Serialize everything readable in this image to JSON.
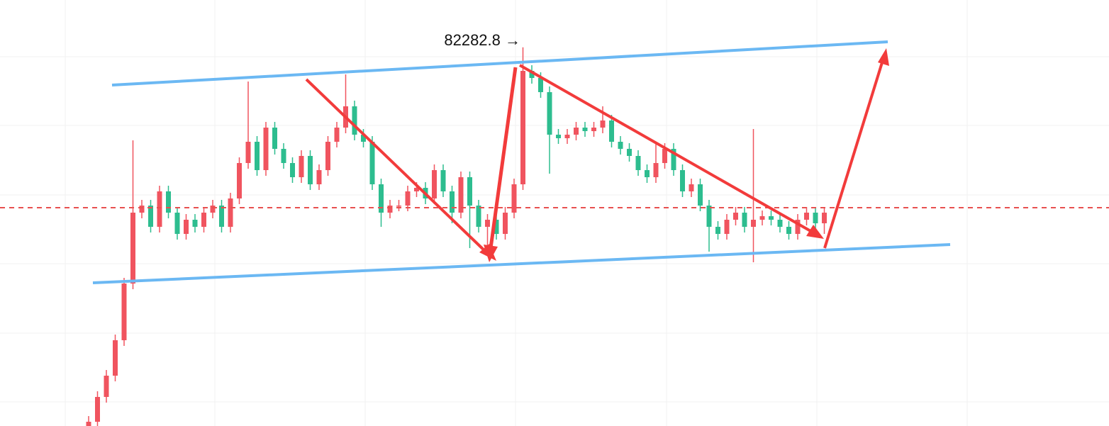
{
  "chart_data": {
    "type": "candlestick",
    "annotation": "82282.8 →",
    "up_color": "#f0545f",
    "down_color": "#2dbd8f",
    "ylim": [
      76940,
      82950
    ],
    "open": [
      76800,
      77000,
      77350,
      77650,
      78150,
      78950,
      79950,
      80050,
      79750,
      80250,
      79950,
      79650,
      79850,
      79750,
      79950,
      80050,
      79750,
      80150,
      80650,
      80950,
      80550,
      81150,
      80850,
      80650,
      80450,
      80750,
      80350,
      80550,
      80950,
      81150,
      81450,
      81050,
      80950,
      80350,
      79950,
      80050,
      80050,
      80250,
      80300,
      80150,
      80550,
      80250,
      79950,
      80450,
      80050,
      79750,
      79850,
      79650,
      79950,
      80350,
      81950,
      81850,
      81650,
      81050,
      81000,
      81050,
      81150,
      81100,
      81150,
      81250,
      80950,
      80850,
      80750,
      80550,
      80450,
      80650,
      80850,
      80550,
      80250,
      80350,
      80050,
      79750,
      79650,
      79850,
      79950,
      79750,
      79850,
      79900,
      79850,
      79750,
      79650,
      79850,
      79950,
      79800
    ],
    "high": [
      77080,
      77430,
      77730,
      78230,
      79030,
      80970,
      80130,
      80130,
      80330,
      80330,
      80030,
      79930,
      79930,
      80030,
      80130,
      80130,
      80230,
      80730,
      81800,
      81030,
      81230,
      81230,
      80930,
      80730,
      80830,
      80830,
      80630,
      81030,
      81230,
      81900,
      81530,
      81130,
      81030,
      80430,
      80130,
      80130,
      80330,
      80380,
      80380,
      80630,
      80630,
      80330,
      80530,
      80530,
      80130,
      79930,
      79930,
      80030,
      80430,
      82282.8,
      82030,
      81930,
      81730,
      81130,
      81130,
      81230,
      81230,
      81230,
      81450,
      81330,
      81030,
      80930,
      80830,
      80630,
      80930,
      80930,
      80930,
      80630,
      80430,
      80430,
      80130,
      79830,
      79930,
      80030,
      80030,
      81130,
      79980,
      79980,
      79930,
      79830,
      79930,
      80030,
      80030,
      80030
    ],
    "low": [
      76720,
      76920,
      77270,
      77570,
      78070,
      78870,
      79870,
      79670,
      79670,
      79870,
      79570,
      79570,
      79670,
      79670,
      79870,
      79670,
      79670,
      80070,
      80570,
      80470,
      80470,
      80770,
      80570,
      80370,
      80370,
      80270,
      80270,
      80470,
      80870,
      81070,
      80970,
      80870,
      80270,
      79750,
      79870,
      79970,
      79970,
      80170,
      80070,
      80070,
      80170,
      79800,
      79870,
      79450,
      79670,
      79400,
      79570,
      79570,
      79870,
      80270,
      81770,
      81570,
      80500,
      80920,
      80920,
      80970,
      81020,
      81020,
      81070,
      80870,
      80770,
      80670,
      80470,
      80370,
      80370,
      80570,
      80470,
      80170,
      80170,
      79970,
      79400,
      79570,
      79570,
      79770,
      79670,
      79250,
      79770,
      79770,
      79670,
      79570,
      79570,
      79770,
      79720,
      79650
    ],
    "close": [
      77000,
      77350,
      77650,
      78150,
      78950,
      79950,
      80050,
      79750,
      80250,
      79950,
      79650,
      79850,
      79750,
      79950,
      80050,
      79750,
      80150,
      80650,
      80950,
      80550,
      81150,
      80850,
      80650,
      80450,
      80750,
      80350,
      80550,
      80950,
      81150,
      81450,
      81050,
      80950,
      80350,
      79950,
      80050,
      80050,
      80250,
      80300,
      80150,
      80550,
      80250,
      79950,
      80450,
      80050,
      79750,
      79850,
      79650,
      79950,
      80350,
      81950,
      81850,
      81650,
      81050,
      81000,
      81050,
      81150,
      81100,
      81150,
      81250,
      80950,
      80850,
      80750,
      80550,
      80450,
      80650,
      80850,
      80550,
      80250,
      80350,
      80050,
      79750,
      79650,
      79850,
      79950,
      79750,
      79850,
      79900,
      79850,
      79750,
      79650,
      79850,
      79950,
      79800,
      79950
    ]
  }
}
